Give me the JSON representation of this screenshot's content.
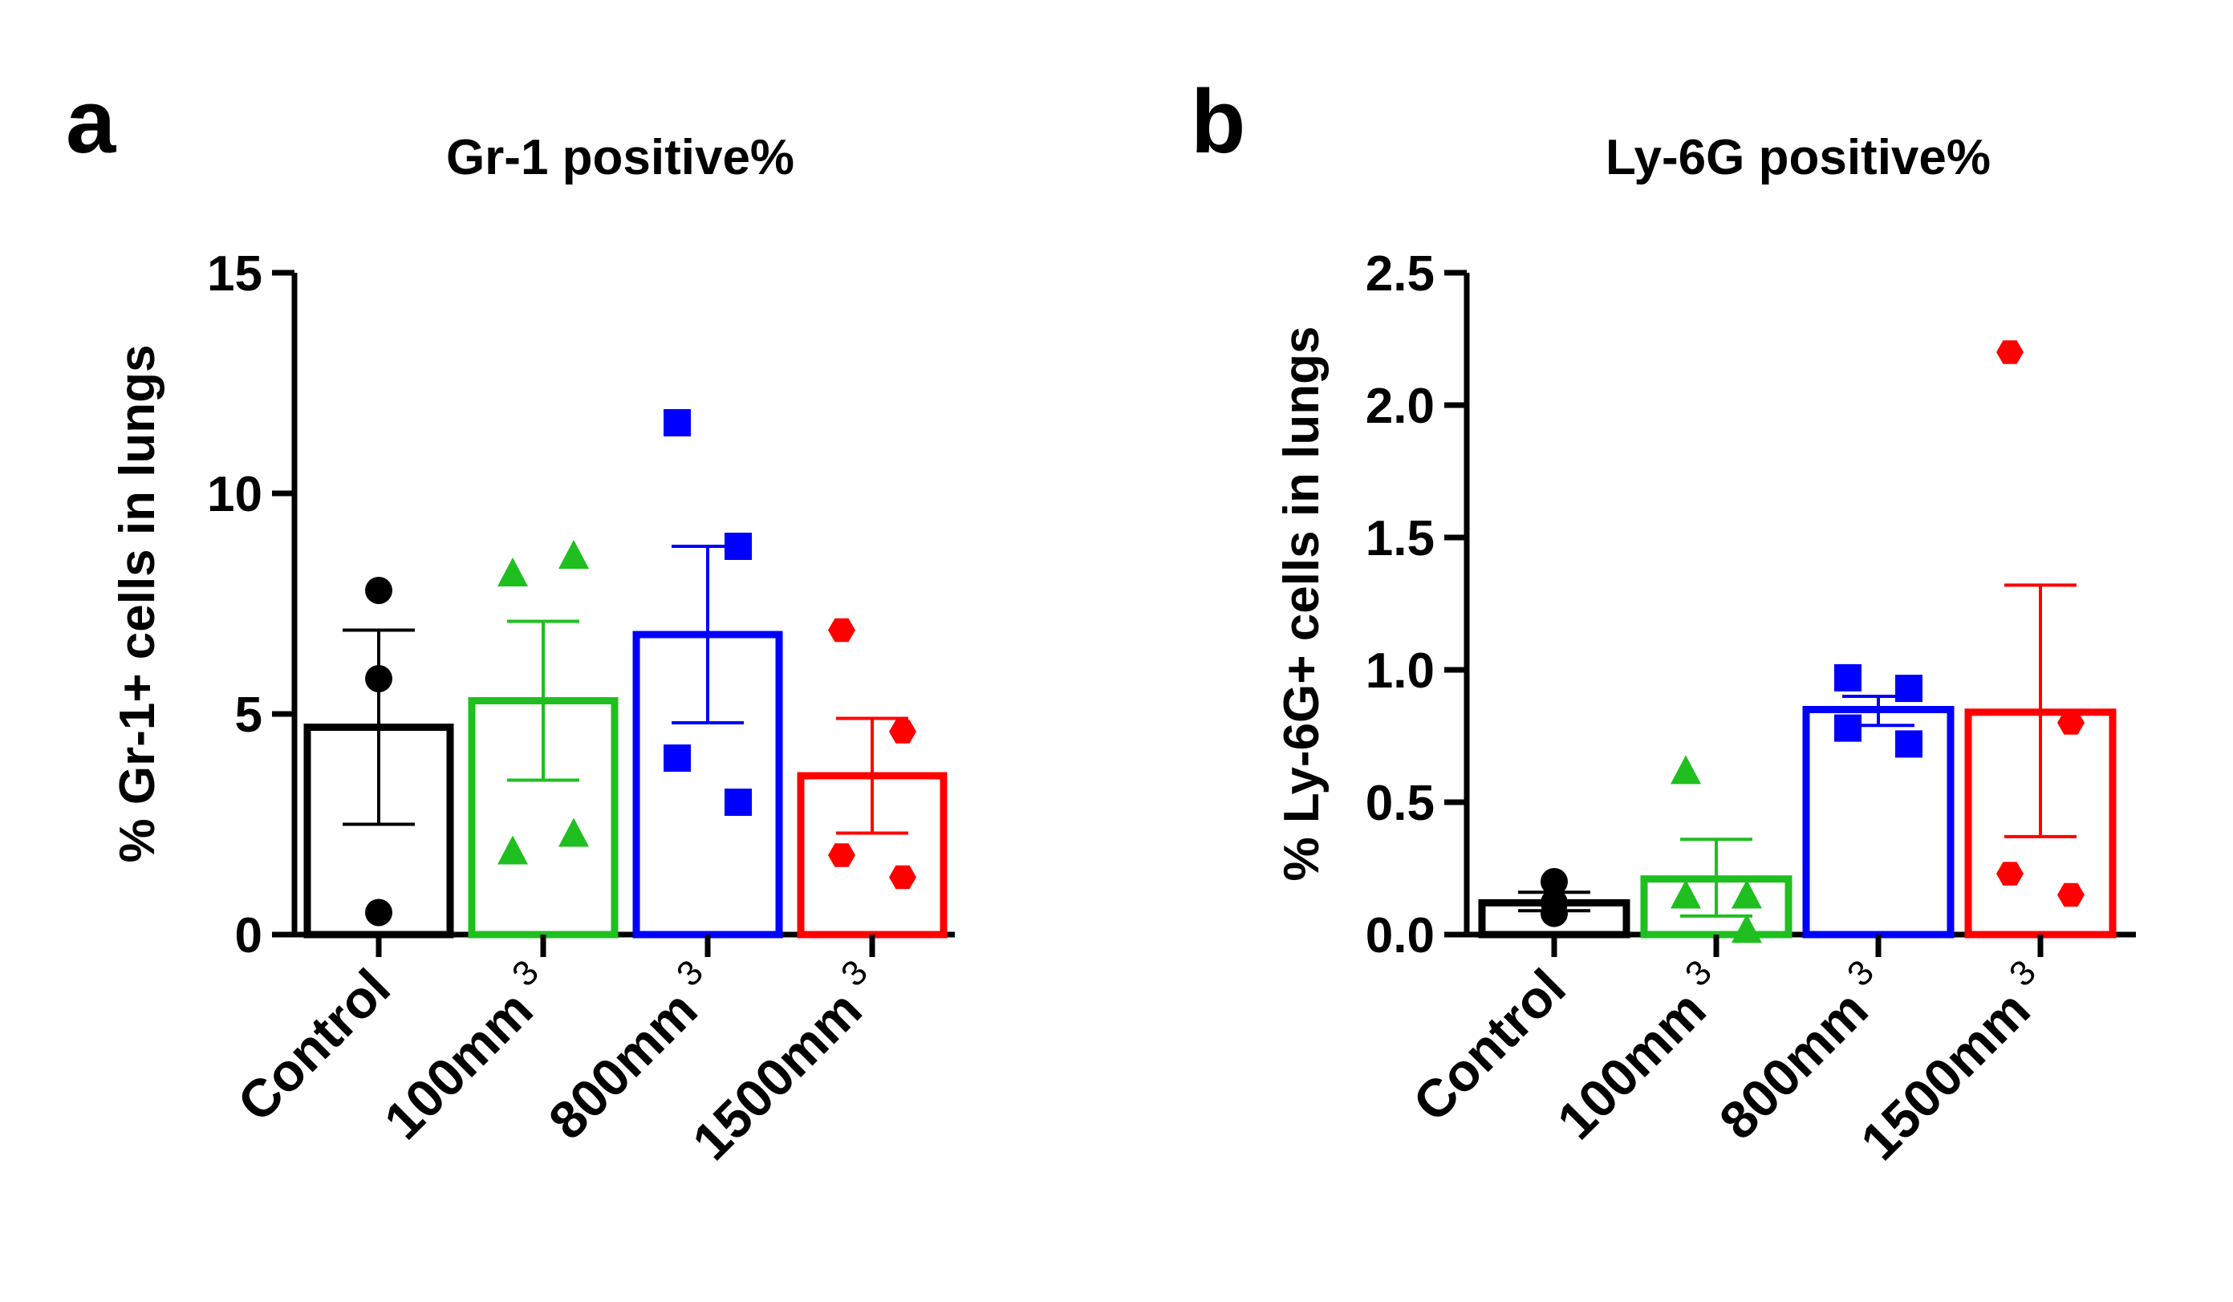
{
  "chart_data": [
    {
      "panel": "a",
      "type": "bar",
      "title": "Gr-1 positive%",
      "ylabel": "% Gr-1+ cells in lungs",
      "xlabel": "",
      "ylim": [
        0,
        15
      ],
      "yticks": [
        0,
        5,
        10,
        15
      ],
      "grid": false,
      "categories": [
        {
          "base": "Control",
          "sup": ""
        },
        {
          "base": "100mm",
          "sup": "3"
        },
        {
          "base": "800mm",
          "sup": "3"
        },
        {
          "base": "1500mm",
          "sup": "3"
        }
      ],
      "series": [
        {
          "category": "Control",
          "color": "#000000",
          "marker": "circle",
          "mean": 4.7,
          "sem_low": 2.5,
          "sem_high": 6.9,
          "points": [
            7.8,
            5.8,
            0.5
          ]
        },
        {
          "category": "100mm3",
          "color": "#1fbf1f",
          "marker": "triangle",
          "mean": 5.3,
          "sem_low": 3.5,
          "sem_high": 7.1,
          "points": [
            8.2,
            8.6,
            1.9,
            2.3
          ]
        },
        {
          "category": "800mm3",
          "color": "#0000ff",
          "marker": "square",
          "mean": 6.8,
          "sem_low": 4.8,
          "sem_high": 8.8,
          "points": [
            11.6,
            8.8,
            4.0,
            3.0
          ]
        },
        {
          "category": "1500mm3",
          "color": "#ff0000",
          "marker": "hexagon",
          "mean": 3.6,
          "sem_low": 2.3,
          "sem_high": 4.9,
          "points": [
            6.9,
            4.6,
            1.8,
            1.3
          ]
        }
      ]
    },
    {
      "panel": "b",
      "type": "bar",
      "title": "Ly-6G positive%",
      "ylabel": "% Ly-6G+ cells in lungs",
      "xlabel": "",
      "ylim": [
        0,
        2.5
      ],
      "yticks": [
        "0.0",
        "0.5",
        "1.0",
        "1.5",
        "2.0",
        "2.5"
      ],
      "grid": false,
      "categories": [
        {
          "base": "Control",
          "sup": ""
        },
        {
          "base": "100mm",
          "sup": "3"
        },
        {
          "base": "800mm",
          "sup": "3"
        },
        {
          "base": "1500mm",
          "sup": "3"
        }
      ],
      "series": [
        {
          "category": "Control",
          "color": "#000000",
          "marker": "circle",
          "mean": 0.12,
          "sem_low": 0.09,
          "sem_high": 0.16,
          "points": [
            0.2,
            0.12,
            0.08
          ]
        },
        {
          "category": "100mm3",
          "color": "#1fbf1f",
          "marker": "triangle",
          "mean": 0.21,
          "sem_low": 0.07,
          "sem_high": 0.36,
          "points": [
            0.62,
            0.15,
            0.15,
            0.02
          ]
        },
        {
          "category": "800mm3",
          "color": "#0000ff",
          "marker": "square",
          "mean": 0.85,
          "sem_low": 0.79,
          "sem_high": 0.9,
          "points": [
            0.97,
            0.93,
            0.78,
            0.72
          ]
        },
        {
          "category": "1500mm3",
          "color": "#ff0000",
          "marker": "hexagon",
          "mean": 0.84,
          "sem_low": 0.37,
          "sem_high": 1.32,
          "points": [
            2.2,
            0.8,
            0.23,
            0.15
          ]
        }
      ]
    }
  ]
}
